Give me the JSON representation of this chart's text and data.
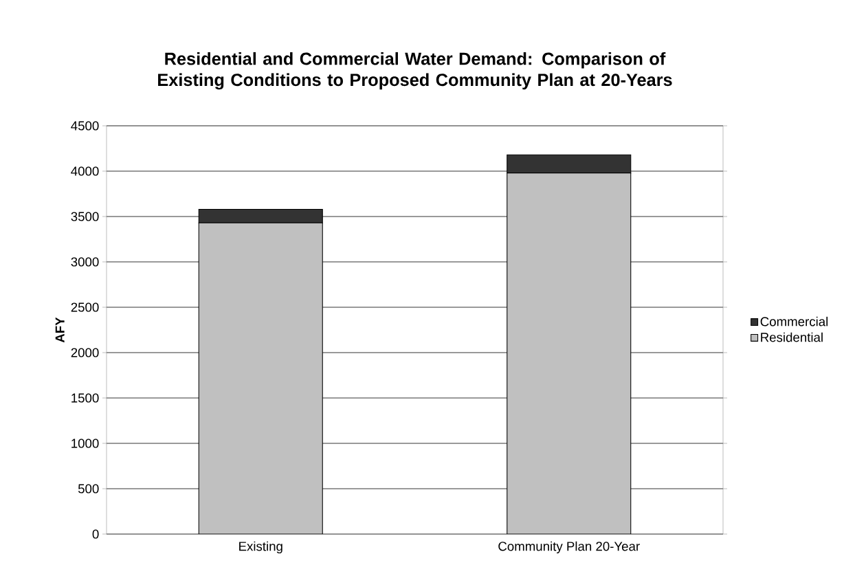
{
  "chart_data": {
    "type": "bar",
    "title": "Residential and Commercial Water Demand: Comparison of Existing Conditions to Proposed Community Plan at 20-Years",
    "ylabel": "AFY",
    "categories": [
      "Existing",
      "Community Plan 20-Year"
    ],
    "stacked": true,
    "series": [
      {
        "name": "Residential",
        "color": "#c0c0c0",
        "values": [
          3430,
          3980
        ]
      },
      {
        "name": "Commercial",
        "color": "#333333",
        "values": [
          150,
          200
        ]
      }
    ],
    "ylim": [
      0,
      4500
    ],
    "yticks": [
      0,
      500,
      1000,
      1500,
      2000,
      2500,
      3000,
      3500,
      4000,
      4500
    ],
    "grid": "y",
    "legend": "right"
  }
}
